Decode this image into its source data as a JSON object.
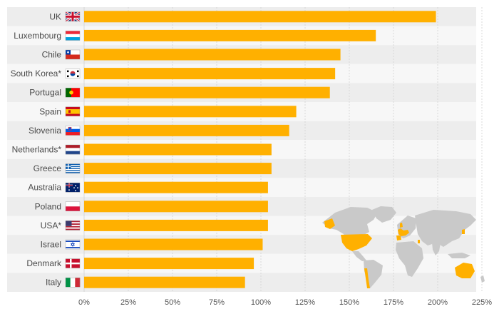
{
  "chart_data": {
    "type": "bar",
    "orientation": "horizontal",
    "categories": [
      "UK",
      "Luxembourg",
      "Chile",
      "South Korea*",
      "Portugal",
      "Spain",
      "Slovenia",
      "Netherlands*",
      "Greece",
      "Australia",
      "Poland",
      "USA*",
      "Israel",
      "Denmark",
      "Italy"
    ],
    "flags": [
      "flag-uk-icon",
      "flag-luxembourg-icon",
      "flag-chile-icon",
      "flag-south-korea-icon",
      "flag-portugal-icon",
      "flag-spain-icon",
      "flag-slovenia-icon",
      "flag-netherlands-icon",
      "flag-greece-icon",
      "flag-australia-icon",
      "flag-poland-icon",
      "flag-usa-icon",
      "flag-israel-icon",
      "flag-denmark-icon",
      "flag-italy-icon"
    ],
    "values": [
      199,
      165,
      145,
      142,
      139,
      120,
      116,
      106,
      106,
      104,
      104,
      104,
      101,
      96,
      91
    ],
    "x_ticks": [
      "0%",
      "25%",
      "50%",
      "75%",
      "100%",
      "125%",
      "150%",
      "175%",
      "200%",
      "225%"
    ],
    "xlim": [
      0,
      225
    ],
    "title": "",
    "xlabel": "",
    "ylabel": "",
    "grid": true,
    "colors": {
      "bar": "#FFB000",
      "row_band": "#EDEDED",
      "grid": "#D8D8D8",
      "map_land": "#C9C9C9",
      "map_highlight": "#FFB000"
    },
    "decoration": "world-map-icon"
  }
}
